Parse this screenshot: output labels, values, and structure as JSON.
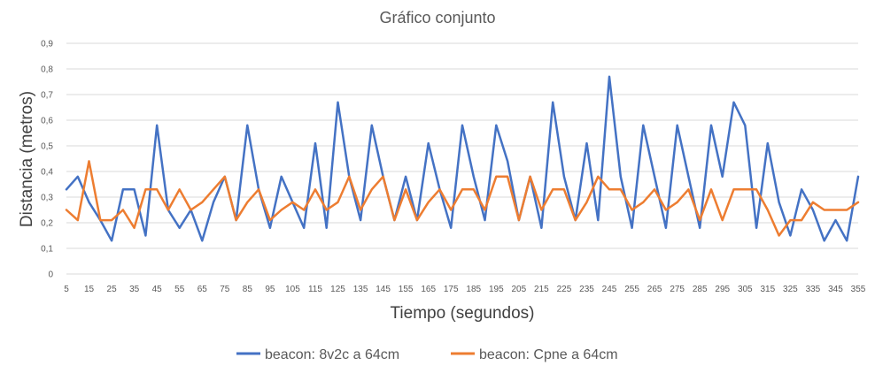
{
  "chart_data": {
    "type": "line",
    "title": "Gráfico conjunto",
    "xlabel": "Tiempo (segundos)",
    "ylabel": "Distancia (metros)",
    "ylim": [
      0,
      0.9
    ],
    "yticks": [
      "0",
      "0,1",
      "0,2",
      "0,3",
      "0,4",
      "0,5",
      "0,6",
      "0,7",
      "0,8",
      "0,9"
    ],
    "grid": true,
    "legend_position": "bottom",
    "x": [
      5,
      10,
      15,
      20,
      25,
      30,
      35,
      40,
      45,
      50,
      55,
      60,
      65,
      70,
      75,
      80,
      85,
      90,
      95,
      100,
      105,
      110,
      115,
      120,
      125,
      130,
      135,
      140,
      145,
      150,
      155,
      160,
      165,
      170,
      175,
      180,
      185,
      190,
      195,
      200,
      205,
      210,
      215,
      220,
      225,
      230,
      235,
      240,
      245,
      250,
      255,
      260,
      265,
      270,
      275,
      280,
      285,
      290,
      295,
      300,
      305,
      310,
      315,
      320,
      325,
      330,
      335,
      340,
      345,
      350,
      355
    ],
    "xtick_labels": [
      "5",
      "15",
      "25",
      "35",
      "45",
      "55",
      "65",
      "75",
      "85",
      "95",
      "105",
      "115",
      "125",
      "135",
      "145",
      "155",
      "165",
      "175",
      "185",
      "195",
      "205",
      "215",
      "225",
      "235",
      "245",
      "255",
      "265",
      "275",
      "285",
      "295",
      "305",
      "315",
      "325",
      "335",
      "345",
      "355"
    ],
    "series": [
      {
        "name": "beacon: 8v2c a 64cm",
        "color": "#4472C4",
        "values": [
          0.33,
          0.38,
          0.28,
          0.21,
          0.13,
          0.33,
          0.33,
          0.15,
          0.58,
          0.25,
          0.18,
          0.25,
          0.13,
          0.28,
          0.38,
          0.21,
          0.58,
          0.33,
          0.18,
          0.38,
          0.28,
          0.18,
          0.51,
          0.18,
          0.67,
          0.38,
          0.21,
          0.58,
          0.38,
          0.21,
          0.38,
          0.21,
          0.51,
          0.33,
          0.18,
          0.58,
          0.38,
          0.21,
          0.58,
          0.44,
          0.21,
          0.38,
          0.18,
          0.67,
          0.38,
          0.21,
          0.51,
          0.21,
          0.77,
          0.38,
          0.18,
          0.58,
          0.38,
          0.18,
          0.58,
          0.38,
          0.18,
          0.58,
          0.38,
          0.67,
          0.58,
          0.18,
          0.51,
          0.28,
          0.15,
          0.33,
          0.25,
          0.13,
          0.21,
          0.13,
          0.38
        ]
      },
      {
        "name": "beacon: Cpne a 64cm",
        "color": "#ED7D31",
        "values": [
          0.25,
          0.21,
          0.44,
          0.21,
          0.21,
          0.25,
          0.18,
          0.33,
          0.33,
          0.25,
          0.33,
          0.25,
          0.28,
          0.33,
          0.38,
          0.21,
          0.28,
          0.33,
          0.21,
          0.25,
          0.28,
          0.25,
          0.33,
          0.25,
          0.28,
          0.38,
          0.25,
          0.33,
          0.38,
          0.21,
          0.33,
          0.21,
          0.28,
          0.33,
          0.25,
          0.33,
          0.33,
          0.25,
          0.38,
          0.38,
          0.21,
          0.38,
          0.25,
          0.33,
          0.33,
          0.21,
          0.28,
          0.38,
          0.33,
          0.33,
          0.25,
          0.28,
          0.33,
          0.25,
          0.28,
          0.33,
          0.21,
          0.33,
          0.21,
          0.33,
          0.33,
          0.33,
          0.25,
          0.15,
          0.21,
          0.21,
          0.28,
          0.25,
          0.25,
          0.25,
          0.28
        ]
      }
    ]
  }
}
